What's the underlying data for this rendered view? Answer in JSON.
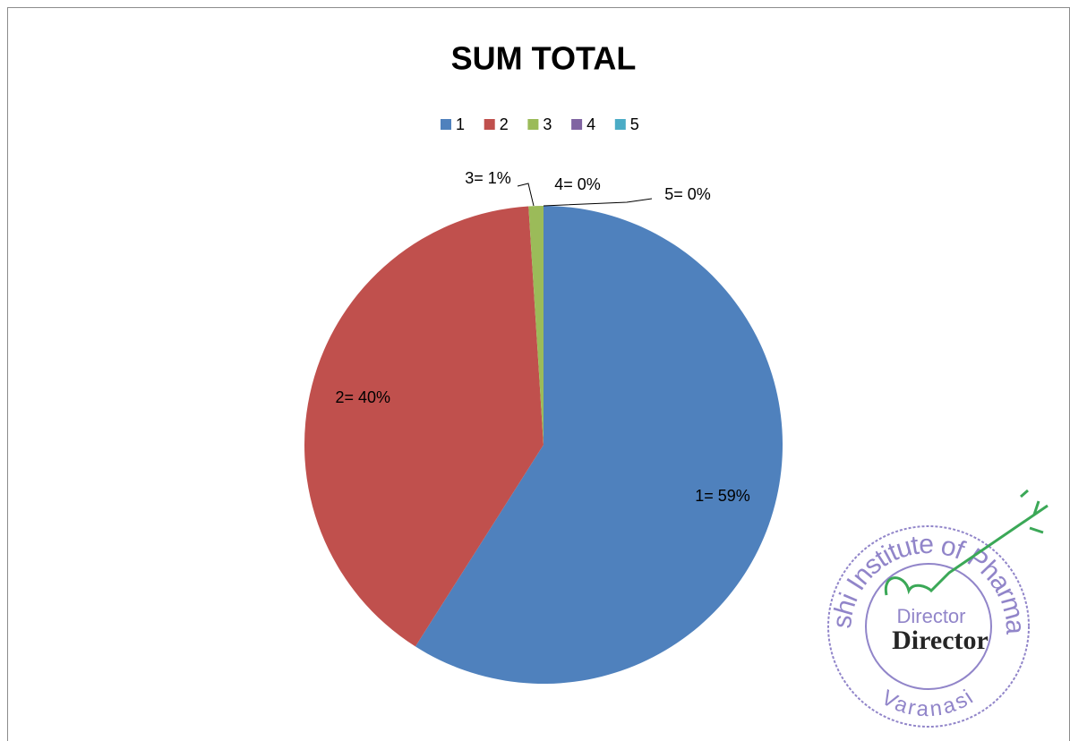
{
  "chart_data": {
    "type": "pie",
    "title": "SUM TOTAL",
    "categories": [
      "1",
      "2",
      "3",
      "4",
      "5"
    ],
    "values": [
      59,
      40,
      1,
      0,
      0
    ],
    "value_labels": [
      "1= 59%",
      "2= 40%",
      "3= 1%",
      "4= 0%",
      "5= 0%"
    ],
    "colors": [
      "#4f81bd",
      "#c0504d",
      "#9bbb59",
      "#8064a2",
      "#4bacc6"
    ],
    "legend": "top"
  },
  "stamp": {
    "ring_top": "Kashi Institute of Pharmacy",
    "ring_bottom": "Varanasi",
    "center": "Director",
    "signature": "Director"
  }
}
